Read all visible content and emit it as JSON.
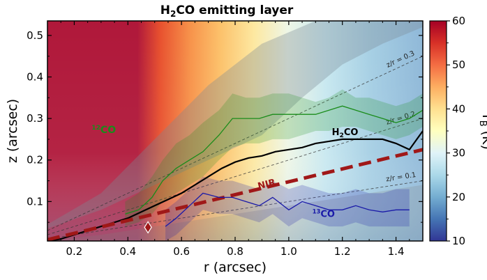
{
  "chart_data": {
    "type": "line",
    "title": {
      "main": "H",
      "sub": "2",
      "rest": "CO emitting layer"
    },
    "xlabel": "r (arcsec)",
    "ylabel": "z (arcsec)",
    "xlim": [
      0.1,
      1.5
    ],
    "ylim": [
      0.005,
      0.535
    ],
    "xticks": [
      0.2,
      0.4,
      0.6,
      0.8,
      1.0,
      1.2,
      1.4
    ],
    "xtick_labels": [
      "0.2",
      "0.4",
      "0.6",
      "0.8",
      "1.0",
      "1.2",
      "1.4"
    ],
    "yticks": [
      0.1,
      0.2,
      0.3,
      0.4,
      0.5
    ],
    "ytick_labels": [
      "0.1",
      "0.2",
      "0.3",
      "0.4",
      "0.5"
    ],
    "colorbar": {
      "label_main": "T",
      "label_sub": "B",
      "label_rest": " (K)",
      "range": [
        10,
        60
      ],
      "ticks": [
        10,
        20,
        30,
        40,
        50,
        60
      ],
      "tick_labels": [
        "10",
        "20",
        "30",
        "40",
        "50",
        "60"
      ],
      "colormap": "RdYlBu_r"
    },
    "reference_lines": [
      {
        "label": "z/r = 0.3",
        "slope": 0.3
      },
      {
        "label": "z/r = 0.2",
        "slope": 0.2
      },
      {
        "label": "z/r = 0.1",
        "slope": 0.1
      }
    ],
    "series": [
      {
        "name": "12CO",
        "label_sup": "12",
        "label_rest": "CO",
        "color": "#1a8c1a",
        "x": [
          0.39,
          0.44,
          0.49,
          0.53,
          0.58,
          0.63,
          0.68,
          0.74,
          0.79,
          0.84,
          0.89,
          0.94,
          1.0,
          1.05,
          1.1,
          1.15,
          1.2,
          1.25,
          1.3,
          1.35,
          1.4,
          1.45,
          1.5
        ],
        "y": [
          0.07,
          0.08,
          0.11,
          0.15,
          0.18,
          0.2,
          0.22,
          0.26,
          0.3,
          0.3,
          0.3,
          0.31,
          0.31,
          0.31,
          0.31,
          0.32,
          0.33,
          0.32,
          0.31,
          0.3,
          0.29,
          0.3,
          0.32
        ],
        "band_upper": [
          0.1,
          0.12,
          0.16,
          0.2,
          0.24,
          0.26,
          0.29,
          0.32,
          0.36,
          0.35,
          0.35,
          0.36,
          0.36,
          0.35,
          0.34,
          0.35,
          0.37,
          0.35,
          0.35,
          0.34,
          0.33,
          0.34,
          0.36
        ],
        "band_lower": [
          0.04,
          0.05,
          0.07,
          0.1,
          0.12,
          0.14,
          0.16,
          0.2,
          0.23,
          0.24,
          0.24,
          0.25,
          0.25,
          0.26,
          0.27,
          0.27,
          0.28,
          0.28,
          0.27,
          0.26,
          0.25,
          0.26,
          0.28
        ]
      },
      {
        "name": "H2CO",
        "label_main": "H",
        "label_sub": "2",
        "label_rest": "CO",
        "color": "#000000",
        "x": [
          0.1,
          0.15,
          0.2,
          0.25,
          0.3,
          0.35,
          0.4,
          0.45,
          0.5,
          0.55,
          0.6,
          0.65,
          0.7,
          0.75,
          0.8,
          0.85,
          0.9,
          0.95,
          1.0,
          1.05,
          1.1,
          1.15,
          1.2,
          1.25,
          1.3,
          1.35,
          1.4,
          1.45,
          1.5
        ],
        "y": [
          0.005,
          0.01,
          0.02,
          0.03,
          0.04,
          0.05,
          0.06,
          0.075,
          0.09,
          0.105,
          0.12,
          0.14,
          0.16,
          0.18,
          0.195,
          0.205,
          0.21,
          0.22,
          0.225,
          0.23,
          0.24,
          0.245,
          0.25,
          0.25,
          0.25,
          0.25,
          0.24,
          0.225,
          0.27
        ]
      },
      {
        "name": "NIR",
        "label": "NIR",
        "color": "#a01818",
        "x": [
          0.1,
          1.5
        ],
        "y": [
          0.008,
          0.225
        ]
      },
      {
        "name": "13CO",
        "label_sup": "13",
        "label_rest": "CO",
        "color": "#1a1aa8",
        "x": [
          0.54,
          0.58,
          0.63,
          0.68,
          0.74,
          0.79,
          0.84,
          0.89,
          0.94,
          1.0,
          1.05,
          1.1,
          1.15,
          1.2,
          1.25,
          1.3,
          1.35,
          1.4,
          1.45
        ],
        "y": [
          0.04,
          0.06,
          0.09,
          0.12,
          0.11,
          0.11,
          0.1,
          0.09,
          0.11,
          0.08,
          0.1,
          0.09,
          0.08,
          0.08,
          0.09,
          0.08,
          0.075,
          0.08,
          0.08
        ],
        "band_upper": [
          0.08,
          0.1,
          0.13,
          0.16,
          0.15,
          0.15,
          0.14,
          0.13,
          0.15,
          0.13,
          0.14,
          0.13,
          0.12,
          0.12,
          0.13,
          0.12,
          0.12,
          0.13,
          0.13
        ],
        "band_lower": [
          0.005,
          0.02,
          0.05,
          0.08,
          0.07,
          0.07,
          0.06,
          0.05,
          0.07,
          0.04,
          0.06,
          0.05,
          0.04,
          0.04,
          0.05,
          0.04,
          0.04,
          0.04,
          0.04
        ]
      }
    ],
    "markers": [
      {
        "name": "diamond",
        "x": 0.475,
        "y": 0.038,
        "color": "#a01818"
      }
    ],
    "colors": {
      "h2co_band": "#808080",
      "upper_shade": "#7a8a94"
    }
  }
}
